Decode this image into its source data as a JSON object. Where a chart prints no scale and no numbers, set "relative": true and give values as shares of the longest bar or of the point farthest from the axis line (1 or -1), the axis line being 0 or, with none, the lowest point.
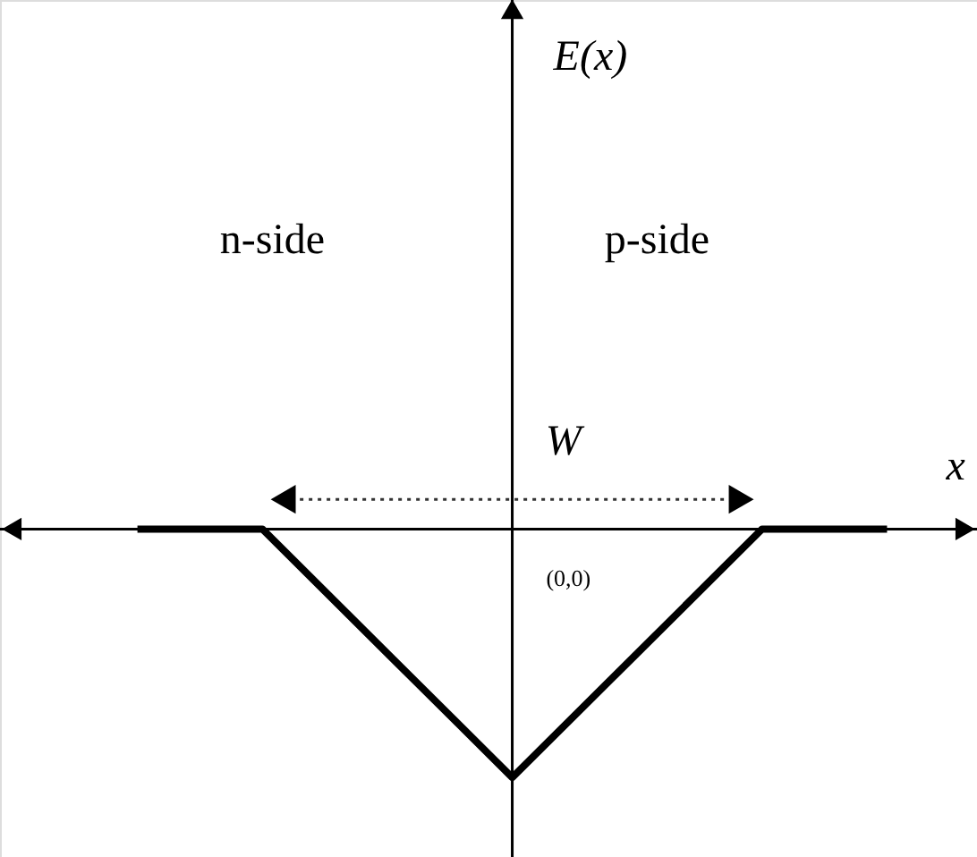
{
  "chart_data": {
    "type": "line",
    "relative": true,
    "categories": [
      null,
      null,
      null,
      null,
      null,
      null,
      null
    ],
    "series": [
      {
        "color": "#000000",
        "values": [
          0,
          0,
          -0.5,
          -1,
          -0.5,
          0,
          0
        ]
      }
    ],
    "annotations": [
      "E(x)",
      "n-side",
      "p-side",
      "W",
      "x",
      "(0,0)"
    ],
    "marker": "none",
    "line_style": "solid"
  }
}
